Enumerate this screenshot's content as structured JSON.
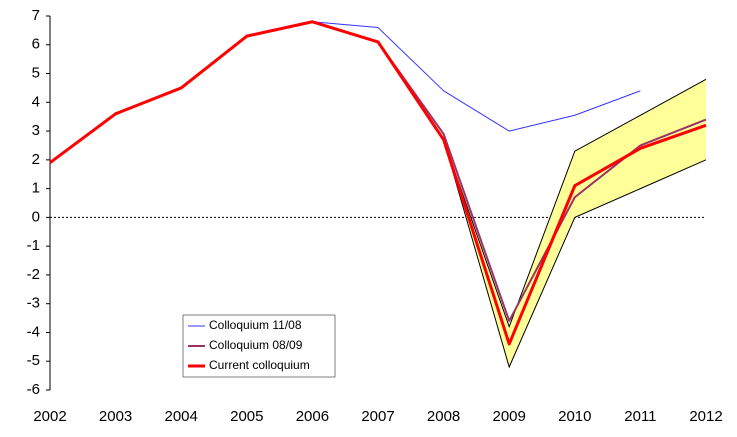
{
  "chart_data": {
    "type": "line",
    "categories": [
      "2002",
      "2003",
      "2004",
      "2005",
      "2006",
      "2007",
      "2008",
      "2009",
      "2010",
      "2011",
      "2012"
    ],
    "series": [
      {
        "name": "Colloquium 11/08",
        "color": "#3333ff",
        "width": 1,
        "values": [
          1.9,
          3.6,
          4.5,
          6.3,
          6.8,
          6.6,
          4.4,
          3.0,
          3.55,
          4.4,
          null
        ]
      },
      {
        "name": "Colloquium 08/09",
        "color": "#993366",
        "width": 2,
        "values": [
          1.9,
          3.6,
          4.5,
          6.3,
          6.8,
          6.1,
          2.9,
          -3.6,
          0.7,
          2.5,
          3.4
        ]
      },
      {
        "name": "Current colloquium",
        "color": "#ff0000",
        "width": 3,
        "values": [
          1.9,
          3.6,
          4.5,
          6.3,
          6.8,
          6.1,
          2.7,
          -4.4,
          1.1,
          2.4,
          3.2
        ]
      }
    ],
    "band": {
      "color": "#ffff99",
      "upper": [
        null,
        null,
        null,
        null,
        null,
        null,
        2.7,
        -3.8,
        2.3,
        3.55,
        4.8
      ],
      "lower": [
        null,
        null,
        null,
        null,
        null,
        null,
        2.7,
        -5.2,
        0.0,
        1.0,
        2.0
      ]
    },
    "ylim": [
      -6,
      7
    ],
    "yticks": [
      -6,
      -5,
      -4,
      -3,
      -2,
      -1,
      0,
      1,
      2,
      3,
      4,
      5,
      6,
      7
    ]
  }
}
